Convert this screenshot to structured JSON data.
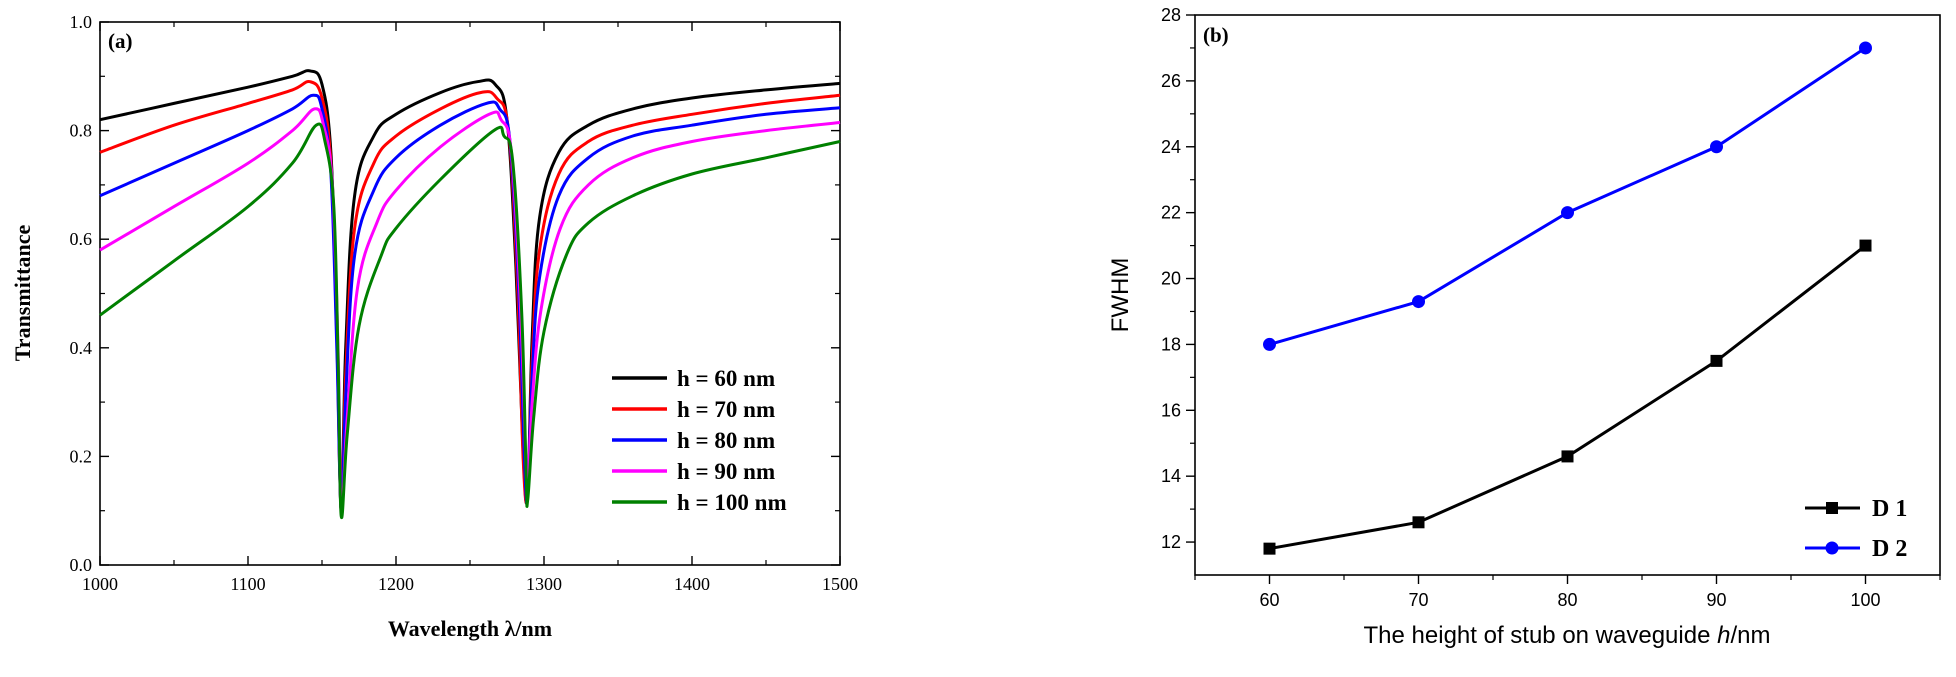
{
  "chart_data": [
    {
      "id": "a",
      "type": "line",
      "panel_label": "(a)",
      "title": "",
      "xlabel": "Wavelength λ/nm",
      "ylabel": "Transmittance",
      "xlim": [
        1000,
        1500
      ],
      "ylim": [
        0.0,
        1.0
      ],
      "xticks": [
        "1000",
        "1100",
        "1200",
        "1300",
        "1400",
        "1500"
      ],
      "yticks": [
        "0.0",
        "0.2",
        "0.4",
        "0.6",
        "0.8",
        "1.0"
      ],
      "legend_position": "bottom-right",
      "series": [
        {
          "name": "h = 60 nm",
          "color": "#000000",
          "x": [
            1000,
            1050,
            1100,
            1130,
            1142,
            1150,
            1156,
            1160,
            1163,
            1166,
            1172,
            1185,
            1200,
            1230,
            1255,
            1267,
            1275,
            1281,
            1286,
            1289,
            1292,
            1297,
            1310,
            1330,
            1360,
            1400,
            1450,
            1500
          ],
          "y": [
            0.82,
            0.85,
            0.88,
            0.9,
            0.91,
            0.885,
            0.76,
            0.45,
            0.1,
            0.4,
            0.68,
            0.79,
            0.83,
            0.87,
            0.89,
            0.885,
            0.82,
            0.55,
            0.2,
            0.13,
            0.42,
            0.64,
            0.76,
            0.81,
            0.84,
            0.86,
            0.875,
            0.887
          ]
        },
        {
          "name": "h = 70 nm",
          "color": "#ff0000",
          "x": [
            1000,
            1050,
            1100,
            1130,
            1142,
            1150,
            1156,
            1160,
            1163,
            1166,
            1172,
            1185,
            1200,
            1230,
            1257,
            1268,
            1276,
            1282,
            1286,
            1289,
            1292,
            1297,
            1310,
            1330,
            1360,
            1400,
            1450,
            1500
          ],
          "y": [
            0.76,
            0.81,
            0.85,
            0.875,
            0.89,
            0.86,
            0.74,
            0.42,
            0.1,
            0.35,
            0.62,
            0.74,
            0.79,
            0.84,
            0.87,
            0.86,
            0.8,
            0.52,
            0.19,
            0.13,
            0.38,
            0.58,
            0.72,
            0.78,
            0.81,
            0.83,
            0.85,
            0.865
          ]
        },
        {
          "name": "h = 80 nm",
          "color": "#0000ff",
          "x": [
            1000,
            1050,
            1100,
            1130,
            1144,
            1150,
            1156,
            1160,
            1163,
            1166,
            1172,
            1185,
            1200,
            1230,
            1261,
            1270,
            1277,
            1283,
            1287,
            1289,
            1292,
            1297,
            1310,
            1330,
            1360,
            1400,
            1450,
            1500
          ],
          "y": [
            0.68,
            0.74,
            0.8,
            0.84,
            0.865,
            0.84,
            0.72,
            0.4,
            0.1,
            0.31,
            0.57,
            0.69,
            0.75,
            0.81,
            0.85,
            0.84,
            0.78,
            0.5,
            0.18,
            0.13,
            0.35,
            0.53,
            0.68,
            0.75,
            0.79,
            0.81,
            0.83,
            0.842
          ]
        },
        {
          "name": "h = 90 nm",
          "color": "#ff00ff",
          "x": [
            1000,
            1050,
            1100,
            1130,
            1145,
            1151,
            1157,
            1161,
            1163,
            1167,
            1174,
            1187,
            1200,
            1230,
            1263,
            1271,
            1278,
            1284,
            1288,
            1289,
            1292,
            1298,
            1311,
            1330,
            1360,
            1400,
            1450,
            1500
          ],
          "y": [
            0.58,
            0.66,
            0.74,
            0.8,
            0.84,
            0.81,
            0.7,
            0.38,
            0.1,
            0.27,
            0.51,
            0.63,
            0.69,
            0.77,
            0.83,
            0.82,
            0.76,
            0.48,
            0.17,
            0.13,
            0.3,
            0.47,
            0.62,
            0.7,
            0.75,
            0.78,
            0.8,
            0.815
          ]
        },
        {
          "name": "h = 100 nm",
          "color": "#008000",
          "x": [
            1000,
            1050,
            1100,
            1130,
            1146,
            1152,
            1158,
            1161,
            1163,
            1167,
            1175,
            1190,
            1200,
            1230,
            1266,
            1273,
            1279,
            1285,
            1288,
            1289,
            1293,
            1300,
            1315,
            1330,
            1360,
            1400,
            1450,
            1500
          ],
          "y": [
            0.46,
            0.56,
            0.66,
            0.74,
            0.81,
            0.78,
            0.66,
            0.36,
            0.09,
            0.24,
            0.44,
            0.57,
            0.62,
            0.71,
            0.8,
            0.79,
            0.74,
            0.46,
            0.16,
            0.12,
            0.27,
            0.43,
            0.57,
            0.63,
            0.68,
            0.72,
            0.75,
            0.78
          ]
        }
      ]
    },
    {
      "id": "b",
      "type": "line",
      "panel_label": "(b)",
      "title": "",
      "xlabel": "The height of stub on waveguide ",
      "xlabel_italic": "h",
      "xlabel_unit": "/nm",
      "ylabel": "FWHM",
      "xlim": [
        55,
        105
      ],
      "ylim": [
        11,
        28
      ],
      "xticks": [
        "60",
        "70",
        "80",
        "90",
        "100"
      ],
      "yticks": [
        "12",
        "14",
        "16",
        "18",
        "20",
        "22",
        "24",
        "26",
        "28"
      ],
      "legend_position": "bottom-right",
      "series": [
        {
          "name": "D 1",
          "color": "#000000",
          "marker": "square",
          "x": [
            60,
            70,
            80,
            90,
            100
          ],
          "y": [
            11.8,
            12.6,
            14.6,
            17.5,
            21.0
          ]
        },
        {
          "name": "D 2",
          "color": "#0000ff",
          "marker": "circle",
          "x": [
            60,
            70,
            80,
            90,
            100
          ],
          "y": [
            18.0,
            19.3,
            22.0,
            24.0,
            27.0
          ]
        }
      ]
    }
  ]
}
